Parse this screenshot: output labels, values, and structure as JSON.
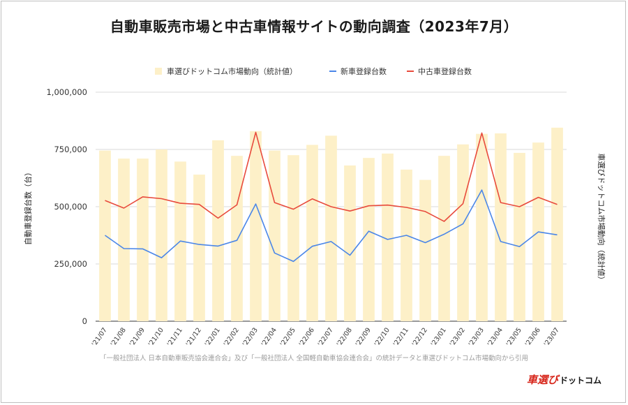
{
  "title": "自動車販売市場と中古車情報サイトの動向調査（2023年7月）",
  "source_note": "「一般社団法人 日本自動車販売協会連合会」及び「一般社団法人 全国軽自動車協会連合会」の統計データと車選びドットコム市場動向から引用",
  "brand": {
    "part1": "車選び",
    "part2": "ドットコム"
  },
  "chart_data": {
    "type": "bar+line",
    "title": "自動車販売市場と中古車情報サイトの動向調査（2023年7月）",
    "ylabel_left": "自動車登録台数（台）",
    "ylabel_right": "車選びドットコム市場動向（統計値）",
    "ylim": [
      0,
      1000000
    ],
    "yticks": [
      0,
      250000,
      500000,
      750000,
      1000000
    ],
    "ytick_labels": [
      "0",
      "250,000",
      "500,000",
      "750,000",
      "1,000,000"
    ],
    "categories": [
      "'21/07",
      "'21/08",
      "'21/09",
      "'21/10",
      "'21/11",
      "'21/12",
      "'22/01",
      "'22/02",
      "'22/03",
      "'22/04",
      "'22/05",
      "'22/06",
      "'22/07",
      "'22/08",
      "'22/09",
      "'22/10",
      "'22/11",
      "'22/12",
      "'23/01",
      "'23/02",
      "'23/03",
      "'23/04",
      "'23/05",
      "'23/06",
      "'23/07"
    ],
    "legend": [
      "車選びドットコム市場動向（統計値）",
      "新車登録台数",
      "中古車登録台数"
    ],
    "series": [
      {
        "name": "車選びドットコム市場動向（統計値）",
        "kind": "bar",
        "color": "#fdf0c8",
        "values": [
          745000,
          710000,
          710000,
          750000,
          697000,
          640000,
          790000,
          722000,
          830000,
          745000,
          725000,
          770000,
          810000,
          680000,
          713000,
          732000,
          662000,
          617000,
          722000,
          772000,
          818000,
          820000,
          735000,
          780000,
          845000
        ]
      },
      {
        "name": "新車登録台数",
        "kind": "line",
        "color": "#4a86e8",
        "values": [
          375000,
          317000,
          316000,
          277000,
          350000,
          335000,
          328000,
          353000,
          512000,
          298000,
          261000,
          327000,
          348000,
          288000,
          393000,
          357000,
          375000,
          343000,
          380000,
          425000,
          573000,
          348000,
          326000,
          390000,
          377000
        ]
      },
      {
        "name": "中古車登録台数",
        "kind": "line",
        "color": "#e84a3c",
        "values": [
          527000,
          494000,
          543000,
          535000,
          515000,
          510000,
          450000,
          508000,
          825000,
          518000,
          489000,
          534000,
          500000,
          481000,
          504000,
          507000,
          497000,
          479000,
          436000,
          513000,
          822000,
          518000,
          500000,
          541000,
          510000
        ]
      }
    ]
  }
}
